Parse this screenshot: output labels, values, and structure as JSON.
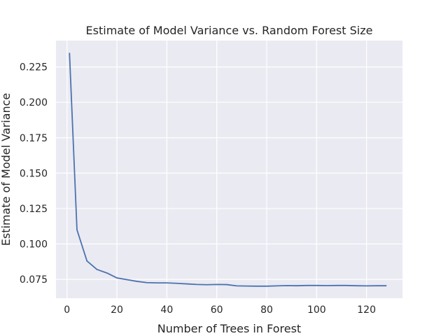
{
  "chart_data": {
    "type": "line",
    "title": "Estimate of Model Variance vs. Random Forest Size",
    "xlabel": "Number of Trees in Forest",
    "ylabel": "Estimate of Model Variance",
    "xlim": [
      -4.4,
      134.4
    ],
    "ylim": [
      0.0617,
      0.2436
    ],
    "xticks": [
      0,
      20,
      40,
      60,
      80,
      100,
      120
    ],
    "yticks": [
      0.075,
      0.1,
      0.125,
      0.15,
      0.175,
      0.2,
      0.225
    ],
    "ytick_labels": [
      "0.075",
      "0.100",
      "0.125",
      "0.150",
      "0.175",
      "0.200",
      "0.225"
    ],
    "grid": true,
    "series": [
      {
        "color": "#4c72b0",
        "x": [
          1,
          4,
          8,
          12,
          16,
          20,
          24,
          28,
          32,
          36,
          40,
          44,
          48,
          52,
          56,
          60,
          64,
          68,
          72,
          76,
          80,
          84,
          88,
          92,
          96,
          100,
          104,
          108,
          112,
          116,
          120,
          124,
          128
        ],
        "y": [
          0.235,
          0.11,
          0.088,
          0.082,
          0.0795,
          0.076,
          0.0748,
          0.0736,
          0.0727,
          0.0725,
          0.0725,
          0.0722,
          0.0718,
          0.0714,
          0.0712,
          0.0714,
          0.0713,
          0.0704,
          0.0703,
          0.0702,
          0.0702,
          0.0704,
          0.0706,
          0.0705,
          0.0707,
          0.0707,
          0.0706,
          0.0707,
          0.0707,
          0.0705,
          0.0704,
          0.0705,
          0.0705
        ]
      }
    ]
  }
}
